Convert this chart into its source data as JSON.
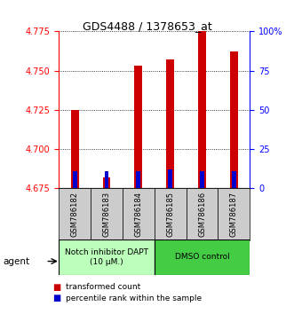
{
  "title": "GDS4488 / 1378653_at",
  "samples": [
    "GSM786182",
    "GSM786183",
    "GSM786184",
    "GSM786185",
    "GSM786186",
    "GSM786187"
  ],
  "red_values": [
    4.725,
    4.682,
    4.753,
    4.757,
    4.775,
    4.762
  ],
  "blue_values": [
    4.686,
    4.686,
    4.686,
    4.687,
    4.686,
    4.686
  ],
  "ymin": 4.675,
  "ymax": 4.775,
  "y_ticks_left": [
    4.675,
    4.7,
    4.725,
    4.75,
    4.775
  ],
  "y_ticks_right": [
    0,
    25,
    50,
    75,
    100
  ],
  "bar_width": 0.25,
  "red_color": "#cc0000",
  "blue_color": "#0000cc",
  "group1_label": "Notch inhibitor DAPT\n(10 μM.)",
  "group2_label": "DMSO control",
  "group1_bg": "#bbffbb",
  "group2_bg": "#44cc44",
  "sample_bg": "#cccccc",
  "legend_red": "transformed count",
  "legend_blue": "percentile rank within the sample",
  "agent_label": "agent"
}
